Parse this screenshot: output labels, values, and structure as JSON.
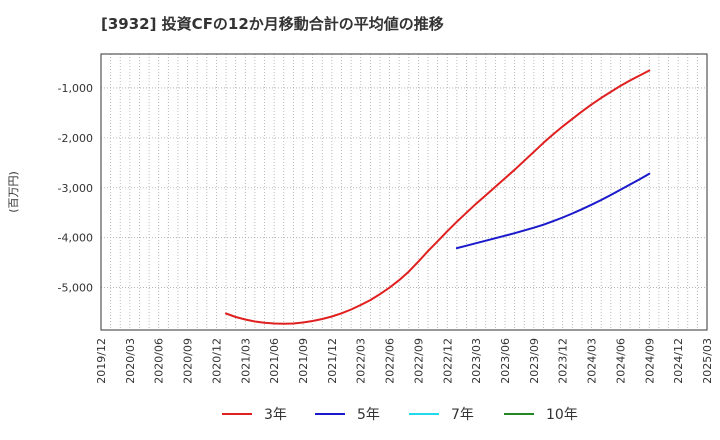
{
  "chart_data": {
    "type": "line",
    "title": "[3932]  投資CFの12か月移動合計の平均値の推移",
    "ylabel": "(百万円)",
    "xlabel": "",
    "x_ticks": [
      "2019/12",
      "2020/03",
      "2020/06",
      "2020/09",
      "2020/12",
      "2021/03",
      "2021/06",
      "2021/09",
      "2021/12",
      "2022/03",
      "2022/06",
      "2022/09",
      "2022/12",
      "2023/03",
      "2023/06",
      "2023/09",
      "2023/12",
      "2024/03",
      "2024/06",
      "2024/09",
      "2024/12",
      "2025/03"
    ],
    "y_ticks": [
      -1000,
      -2000,
      -3000,
      -4000,
      -5000
    ],
    "y_tick_labels": [
      "-1,000",
      "-2,000",
      "-3,000",
      "-4,000",
      "-5,000"
    ],
    "ylim": [
      -5850,
      -320
    ],
    "grid": true,
    "legend_position": "bottom",
    "series": [
      {
        "name": "3年",
        "color": "#e02020",
        "x": [
          "2021/01",
          "2021/02",
          "2021/03",
          "2021/04",
          "2021/05",
          "2021/06",
          "2021/07",
          "2021/08",
          "2021/09",
          "2021/10",
          "2021/11",
          "2021/12",
          "2022/01",
          "2022/02",
          "2022/03",
          "2022/04",
          "2022/05",
          "2022/06",
          "2022/07",
          "2022/08",
          "2022/09",
          "2022/10",
          "2022/11",
          "2022/12",
          "2023/01",
          "2023/02",
          "2023/03",
          "2023/04",
          "2023/05",
          "2023/06",
          "2023/07",
          "2023/08",
          "2023/09",
          "2023/10",
          "2023/11",
          "2023/12",
          "2024/01",
          "2024/02",
          "2024/03",
          "2024/04",
          "2024/05",
          "2024/06",
          "2024/07",
          "2024/08",
          "2024/09"
        ],
        "values": [
          -5520,
          -5590,
          -5640,
          -5680,
          -5705,
          -5720,
          -5725,
          -5720,
          -5700,
          -5670,
          -5630,
          -5580,
          -5515,
          -5440,
          -5350,
          -5250,
          -5130,
          -5000,
          -4850,
          -4680,
          -4480,
          -4270,
          -4070,
          -3870,
          -3680,
          -3500,
          -3320,
          -3150,
          -2980,
          -2810,
          -2640,
          -2460,
          -2280,
          -2100,
          -1930,
          -1770,
          -1620,
          -1470,
          -1330,
          -1200,
          -1080,
          -960,
          -850,
          -750,
          -650
        ]
      },
      {
        "name": "5年",
        "color": "#1a1acc",
        "x": [
          "2023/01",
          "2023/02",
          "2023/03",
          "2023/04",
          "2023/05",
          "2023/06",
          "2023/07",
          "2023/08",
          "2023/09",
          "2023/10",
          "2023/11",
          "2023/12",
          "2024/01",
          "2024/02",
          "2024/03",
          "2024/04",
          "2024/05",
          "2024/06",
          "2024/07",
          "2024/08",
          "2024/09"
        ],
        "values": [
          -4210,
          -4160,
          -4110,
          -4060,
          -4010,
          -3960,
          -3910,
          -3855,
          -3800,
          -3740,
          -3670,
          -3595,
          -3515,
          -3430,
          -3340,
          -3245,
          -3145,
          -3040,
          -2935,
          -2830,
          -2720
        ]
      },
      {
        "name": "7年",
        "color": "#22d8ee",
        "x": [],
        "values": []
      },
      {
        "name": "10年",
        "color": "#228822",
        "x": [],
        "values": []
      }
    ]
  }
}
